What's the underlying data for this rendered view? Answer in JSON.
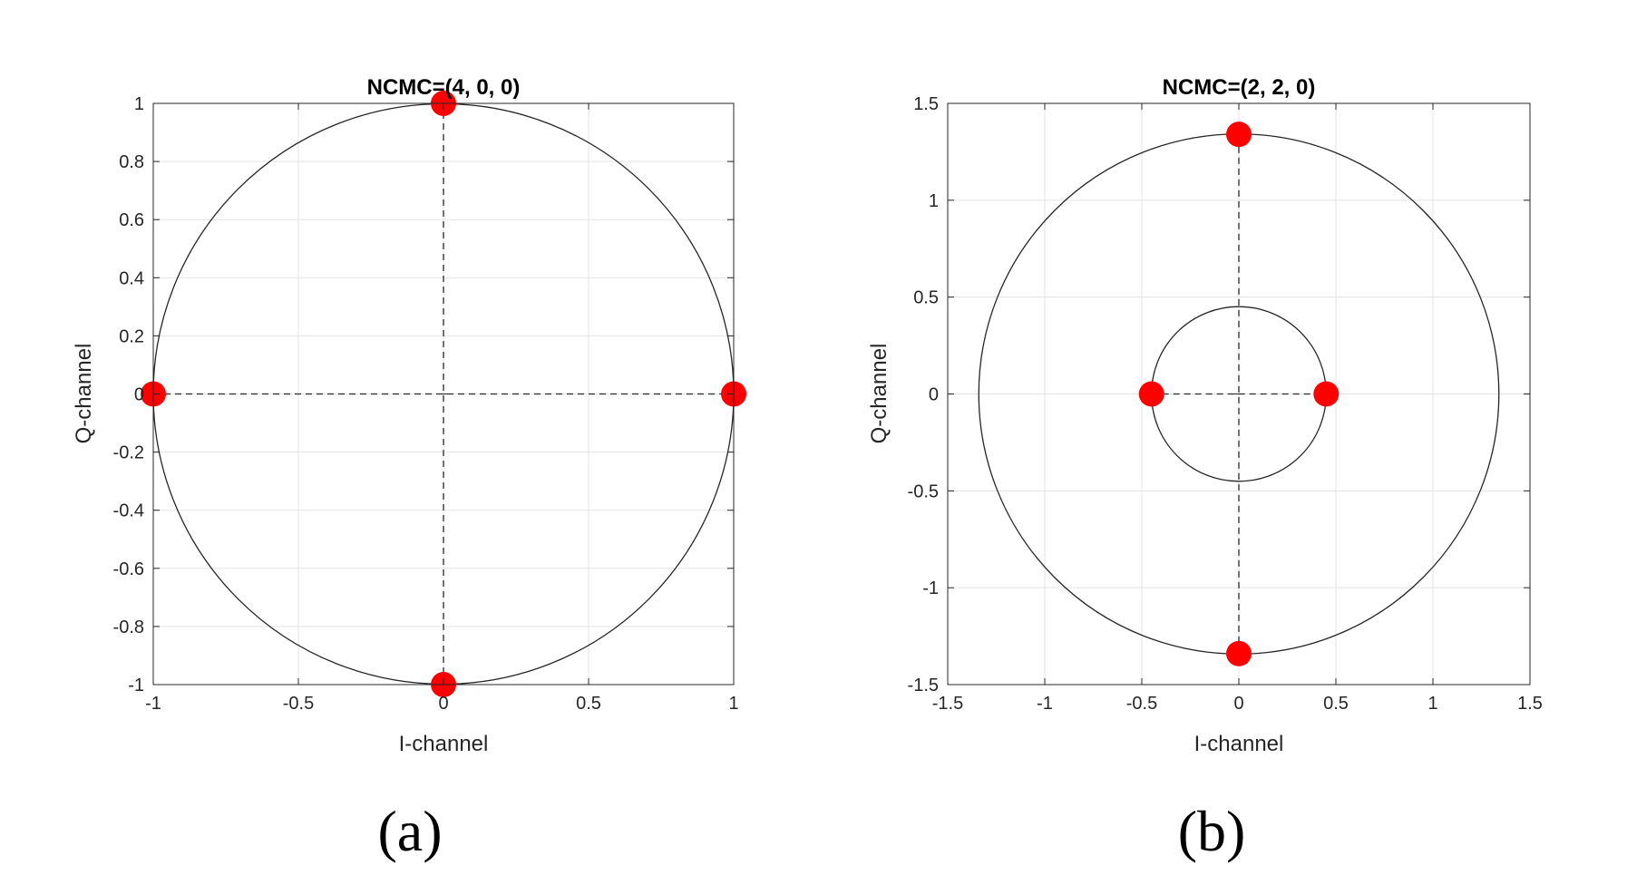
{
  "chart_data": [
    {
      "type": "scatter",
      "title": "NCMC=(4, 0, 0)",
      "xlabel": "I-channel",
      "ylabel": "Q-channel",
      "caption": "(a)",
      "xlim": [
        -1,
        1
      ],
      "ylim": [
        -1,
        1
      ],
      "xticks": [
        -1,
        -0.5,
        0,
        0.5,
        1
      ],
      "xtick_labels": [
        "-1",
        "-0.5",
        "0",
        "0.5",
        "1"
      ],
      "yticks": [
        -1,
        -0.8,
        -0.6,
        -0.4,
        -0.2,
        0,
        0.2,
        0.4,
        0.6,
        0.8,
        1
      ],
      "ytick_labels": [
        "-1",
        "-0.8",
        "-0.6",
        "-0.4",
        "-0.2",
        "0",
        "0.2",
        "0.4",
        "0.6",
        "0.8",
        "1"
      ],
      "grid": true,
      "circles": [
        {
          "radius": 1
        }
      ],
      "points": [
        {
          "x": 0,
          "y": 1
        },
        {
          "x": 1,
          "y": 0
        },
        {
          "x": 0,
          "y": -1
        },
        {
          "x": -1,
          "y": 0
        }
      ],
      "point_color": "#ff0000",
      "segments": [
        {
          "x1": -1,
          "y1": 0,
          "x2": 1,
          "y2": 0
        },
        {
          "x1": 0,
          "y1": -1,
          "x2": 0,
          "y2": 1
        }
      ]
    },
    {
      "type": "scatter",
      "title": "NCMC=(2, 2, 0)",
      "xlabel": "I-channel",
      "ylabel": "Q-channel",
      "caption": "(b)",
      "xlim": [
        -1.5,
        1.5
      ],
      "ylim": [
        -1.5,
        1.5
      ],
      "xticks": [
        -1.5,
        -1,
        -0.5,
        0,
        0.5,
        1,
        1.5
      ],
      "xtick_labels": [
        "-1.5",
        "-1",
        "-0.5",
        "0",
        "0.5",
        "1",
        "1.5"
      ],
      "yticks": [
        -1.5,
        -1,
        -0.5,
        0,
        0.5,
        1,
        1.5
      ],
      "ytick_labels": [
        "-1.5",
        "-1",
        "-0.5",
        "0",
        "0.5",
        "1",
        "1.5"
      ],
      "grid": true,
      "circles": [
        {
          "radius": 1.34
        },
        {
          "radius": 0.45
        }
      ],
      "points": [
        {
          "x": 0,
          "y": 1.34
        },
        {
          "x": 0,
          "y": -1.34
        },
        {
          "x": -0.45,
          "y": 0
        },
        {
          "x": 0.45,
          "y": 0
        }
      ],
      "point_color": "#ff0000",
      "segments": [
        {
          "x1": -0.45,
          "y1": 0,
          "x2": 0.45,
          "y2": 0
        },
        {
          "x1": 0,
          "y1": -1.34,
          "x2": 0,
          "y2": 1.34
        }
      ]
    }
  ]
}
